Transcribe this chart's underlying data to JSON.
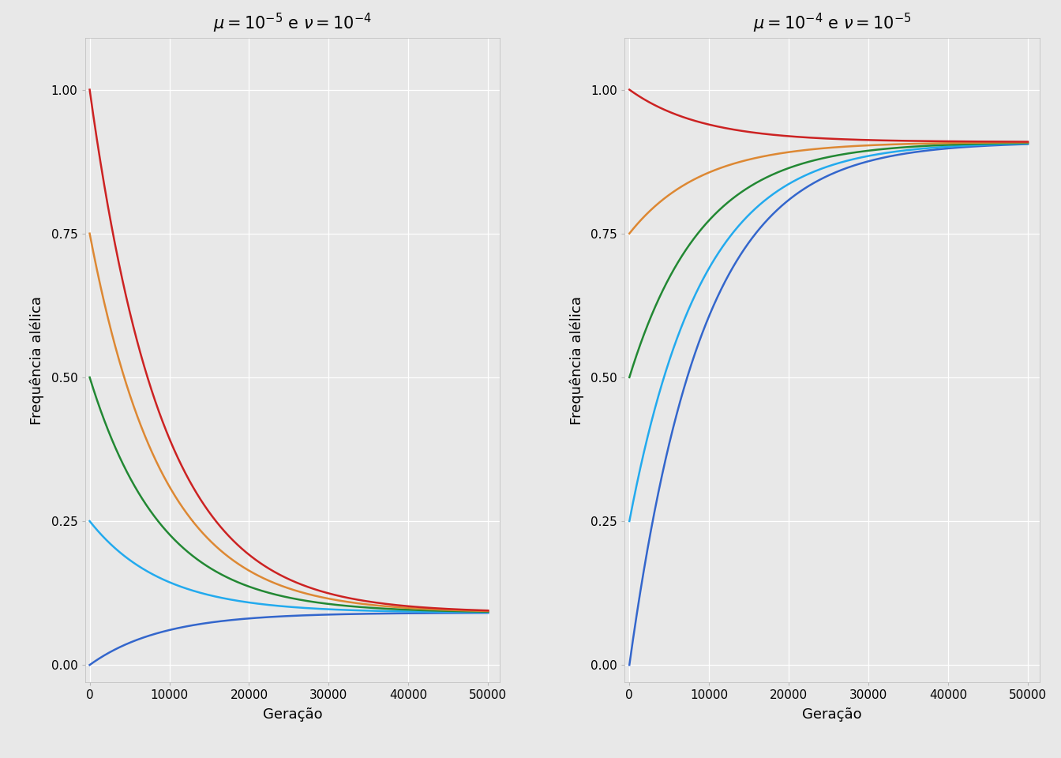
{
  "panel1": {
    "mu": 1e-05,
    "nu": 0.0001,
    "title": "$\\mu = 10^{-5}$ e $\\nu = 10^{-4}$",
    "p0_values": [
      0.0,
      0.25,
      0.5,
      0.75,
      1.0
    ]
  },
  "panel2": {
    "mu": 0.0001,
    "nu": 1e-05,
    "title": "$\\mu = 10^{-4}$ e $\\nu = 10^{-5}$",
    "p0_values": [
      0.0,
      0.25,
      0.5,
      0.75,
      1.0
    ]
  },
  "colors": [
    "#3366CC",
    "#22AAEE",
    "#228833",
    "#DD8833",
    "#CC2222"
  ],
  "n_gen": 50000,
  "xlabel": "Geração",
  "ylabel": "Frequência alélica",
  "background_color": "#E8E8E8",
  "grid_color": "#FFFFFF",
  "line_width": 1.8,
  "title_fontsize": 15,
  "axis_label_fontsize": 13,
  "tick_fontsize": 11,
  "ylim": [
    -0.03,
    1.09
  ],
  "xlim": [
    -600,
    51500
  ],
  "yticks": [
    0.0,
    0.25,
    0.5,
    0.75,
    1.0
  ],
  "xticks": [
    0,
    10000,
    20000,
    30000,
    40000,
    50000
  ]
}
